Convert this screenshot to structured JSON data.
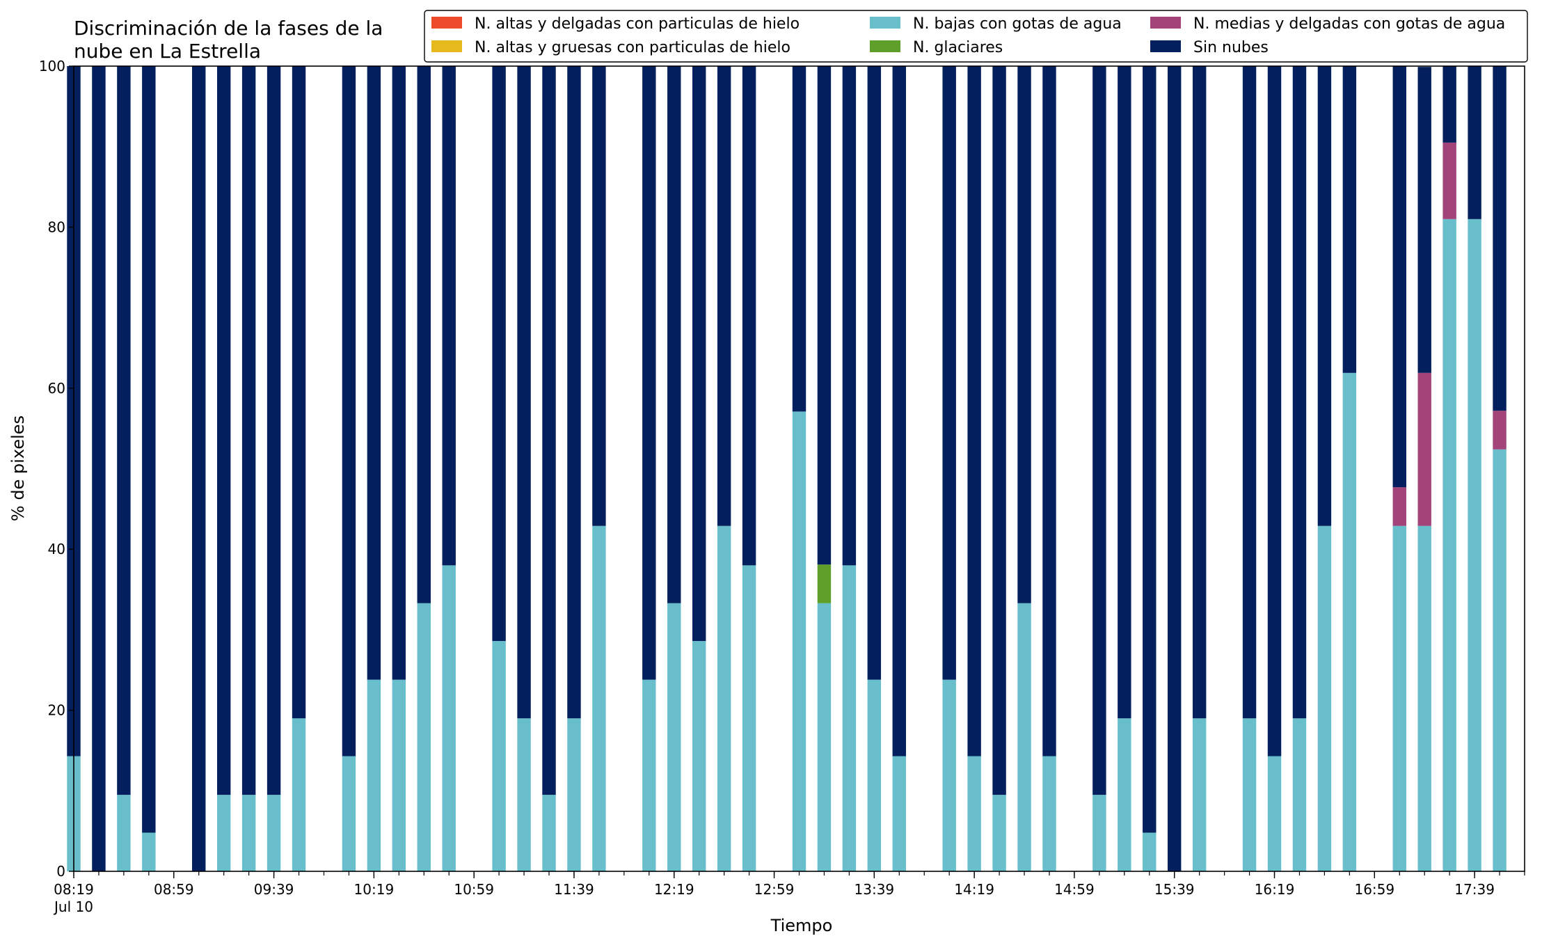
{
  "chart_data": {
    "type": "bar",
    "stacked": true,
    "title": "Discriminación de la fases de la\nnube en La Estrella",
    "xlabel": "Tiempo",
    "ylabel": "% de pixeles",
    "ylim": [
      0,
      100
    ],
    "yticks": [
      "0",
      "20",
      "40",
      "60",
      "80",
      "100"
    ],
    "xtick_labels": [
      "08:19",
      "08:59",
      "09:39",
      "10:19",
      "10:59",
      "11:39",
      "12:19",
      "12:59",
      "13:39",
      "14:19",
      "14:59",
      "15:39",
      "16:19",
      "16:59",
      "17:39"
    ],
    "xtick_sublabel": "Jul 10",
    "x_start": "08:19",
    "x_end": "17:59",
    "x_step_minutes": 10,
    "legend_position": "top-right",
    "legend": [
      "N. altas y delgadas con particulas de hielo",
      "N. altas y gruesas con particulas de hielo",
      "N. bajas con gotas de agua",
      "N. glaciares",
      "N. medias y delgadas con gotas de agua",
      "Sin nubes"
    ],
    "colors": {
      "altas_delgadas": "#ee4b2b",
      "altas_gruesas": "#e6b91c",
      "bajas": "#68bfcb",
      "glaciares": "#5e9f2a",
      "medias": "#a2447a",
      "sin_nubes": "#041f5e"
    },
    "x": [
      "08:19",
      "08:29",
      "08:39",
      "08:49",
      "08:59",
      "09:09",
      "09:19",
      "09:29",
      "09:39",
      "09:49",
      "09:59",
      "10:09",
      "10:19",
      "10:29",
      "10:39",
      "10:49",
      "10:59",
      "11:09",
      "11:19",
      "11:29",
      "11:39",
      "11:49",
      "11:59",
      "12:09",
      "12:19",
      "12:29",
      "12:39",
      "12:49",
      "12:59",
      "13:09",
      "13:19",
      "13:29",
      "13:39",
      "13:49",
      "13:59",
      "14:09",
      "14:19",
      "14:29",
      "14:39",
      "14:49",
      "14:59",
      "15:09",
      "15:19",
      "15:29",
      "15:39",
      "15:49",
      "15:59",
      "16:09",
      "16:19",
      "16:29",
      "16:39",
      "16:49",
      "16:59",
      "17:09",
      "17:19",
      "17:29",
      "17:39",
      "17:49"
    ],
    "series": [
      {
        "key": "bajas",
        "name": "N. bajas con gotas de agua",
        "values": [
          14.3,
          0,
          9.5,
          4.8,
          null,
          0,
          9.5,
          9.5,
          9.5,
          19,
          null,
          14.3,
          23.8,
          23.8,
          33.3,
          38,
          null,
          28.6,
          19,
          9.5,
          19,
          42.9,
          null,
          23.8,
          33.3,
          28.6,
          42.9,
          38,
          null,
          57.1,
          33.3,
          38,
          23.8,
          14.3,
          null,
          23.8,
          14.3,
          9.5,
          33.3,
          14.3,
          null,
          9.5,
          19,
          4.8,
          0,
          19,
          null,
          19,
          14.3,
          19,
          42.9,
          61.9,
          null,
          42.9,
          42.9,
          81,
          81,
          52.4
        ]
      },
      {
        "key": "glaciares",
        "name": "N. glaciares",
        "values": [
          0,
          0,
          0,
          0,
          null,
          0,
          0,
          0,
          0,
          0,
          null,
          0,
          0,
          0,
          0,
          0,
          null,
          0,
          0,
          0,
          0,
          0,
          null,
          0,
          0,
          0,
          0,
          0,
          null,
          0,
          4.8,
          0,
          0,
          0,
          null,
          0,
          0,
          0,
          0,
          0,
          null,
          0,
          0,
          0,
          0,
          0,
          null,
          0,
          0,
          0,
          0,
          0,
          null,
          0,
          0,
          0,
          0,
          0
        ]
      },
      {
        "key": "medias",
        "name": "N. medias y delgadas con gotas de agua",
        "values": [
          0,
          0,
          0,
          0,
          null,
          0,
          0,
          0,
          0,
          0,
          null,
          0,
          0,
          0,
          0,
          0,
          null,
          0,
          0,
          0,
          0,
          0,
          null,
          0,
          0,
          0,
          0,
          0,
          null,
          0,
          0,
          0,
          0,
          0,
          null,
          0,
          0,
          0,
          0,
          0,
          null,
          0,
          0,
          0,
          0,
          0,
          null,
          0,
          0,
          0,
          0,
          0,
          null,
          4.8,
          19,
          9.5,
          0,
          4.8
        ]
      },
      {
        "key": "sin_nubes",
        "name": "Sin nubes",
        "values": [
          85.7,
          100,
          90.5,
          95.2,
          null,
          100,
          90.5,
          90.5,
          90.5,
          81,
          null,
          85.7,
          76.2,
          76.2,
          66.7,
          62,
          null,
          71.4,
          81,
          90.5,
          81,
          57.1,
          null,
          76.2,
          66.7,
          71.4,
          57.1,
          62,
          null,
          42.9,
          61.9,
          62,
          76.2,
          85.7,
          null,
          76.2,
          85.7,
          90.5,
          66.7,
          85.7,
          null,
          90.5,
          81,
          95.2,
          100,
          81,
          null,
          81,
          85.7,
          81,
          57.1,
          38.1,
          null,
          52.3,
          38,
          9.5,
          19,
          42.8
        ]
      }
    ]
  }
}
